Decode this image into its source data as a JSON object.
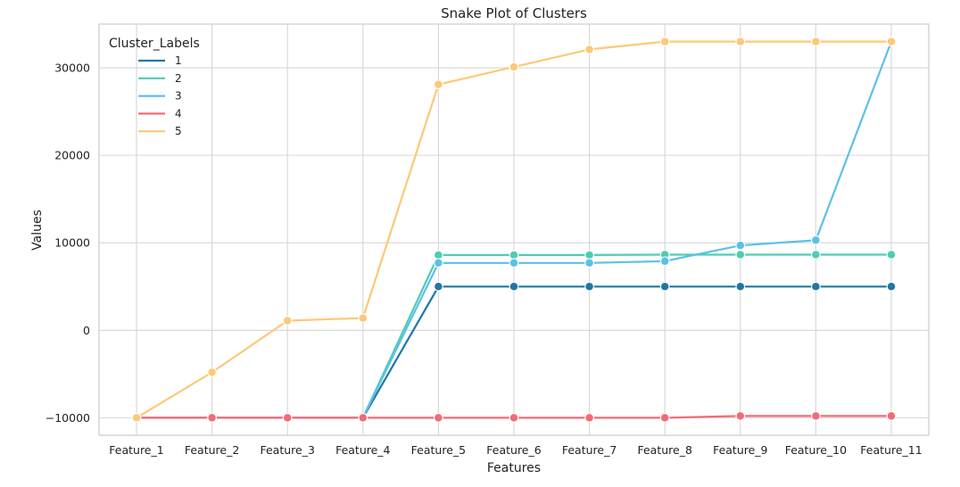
{
  "chart_data": {
    "type": "line",
    "title": "Snake Plot of Clusters",
    "xlabel": "Features",
    "ylabel": "Values",
    "categories": [
      "Feature_1",
      "Feature_2",
      "Feature_3",
      "Feature_4",
      "Feature_5",
      "Feature_6",
      "Feature_7",
      "Feature_8",
      "Feature_9",
      "Feature_10",
      "Feature_11"
    ],
    "ylim": [
      -12000,
      35000
    ],
    "yticks": [
      -10000,
      0,
      10000,
      20000,
      30000
    ],
    "ytick_labels": [
      "−10000",
      "0",
      "10000",
      "20000",
      "30000"
    ],
    "grid": true,
    "legend": {
      "title": "Cluster_Labels",
      "placement": "top-left"
    },
    "series": [
      {
        "name": "1",
        "color": "#1f77a4",
        "values": [
          -10000,
          -10000,
          -10000,
          -10000,
          5000,
          5000,
          5000,
          5000,
          5000,
          5000,
          5000
        ]
      },
      {
        "name": "2",
        "color": "#4ecdb4",
        "values": [
          -10000,
          -10000,
          -10000,
          -10000,
          8600,
          8600,
          8600,
          8650,
          8650,
          8650,
          8650
        ]
      },
      {
        "name": "3",
        "color": "#5bc0e8",
        "values": [
          -10000,
          -10000,
          -10000,
          -10000,
          7700,
          7700,
          7700,
          7900,
          9700,
          10300,
          33000
        ]
      },
      {
        "name": "4",
        "color": "#f46a74",
        "values": [
          -10000,
          -10000,
          -10000,
          -10000,
          -10000,
          -10000,
          -10000,
          -10000,
          -9800,
          -9800,
          -9800
        ]
      },
      {
        "name": "5",
        "color": "#fdc878",
        "values": [
          -10000,
          -4800,
          1100,
          1400,
          28100,
          30100,
          32100,
          33000,
          33000,
          33000,
          33000
        ]
      }
    ]
  }
}
